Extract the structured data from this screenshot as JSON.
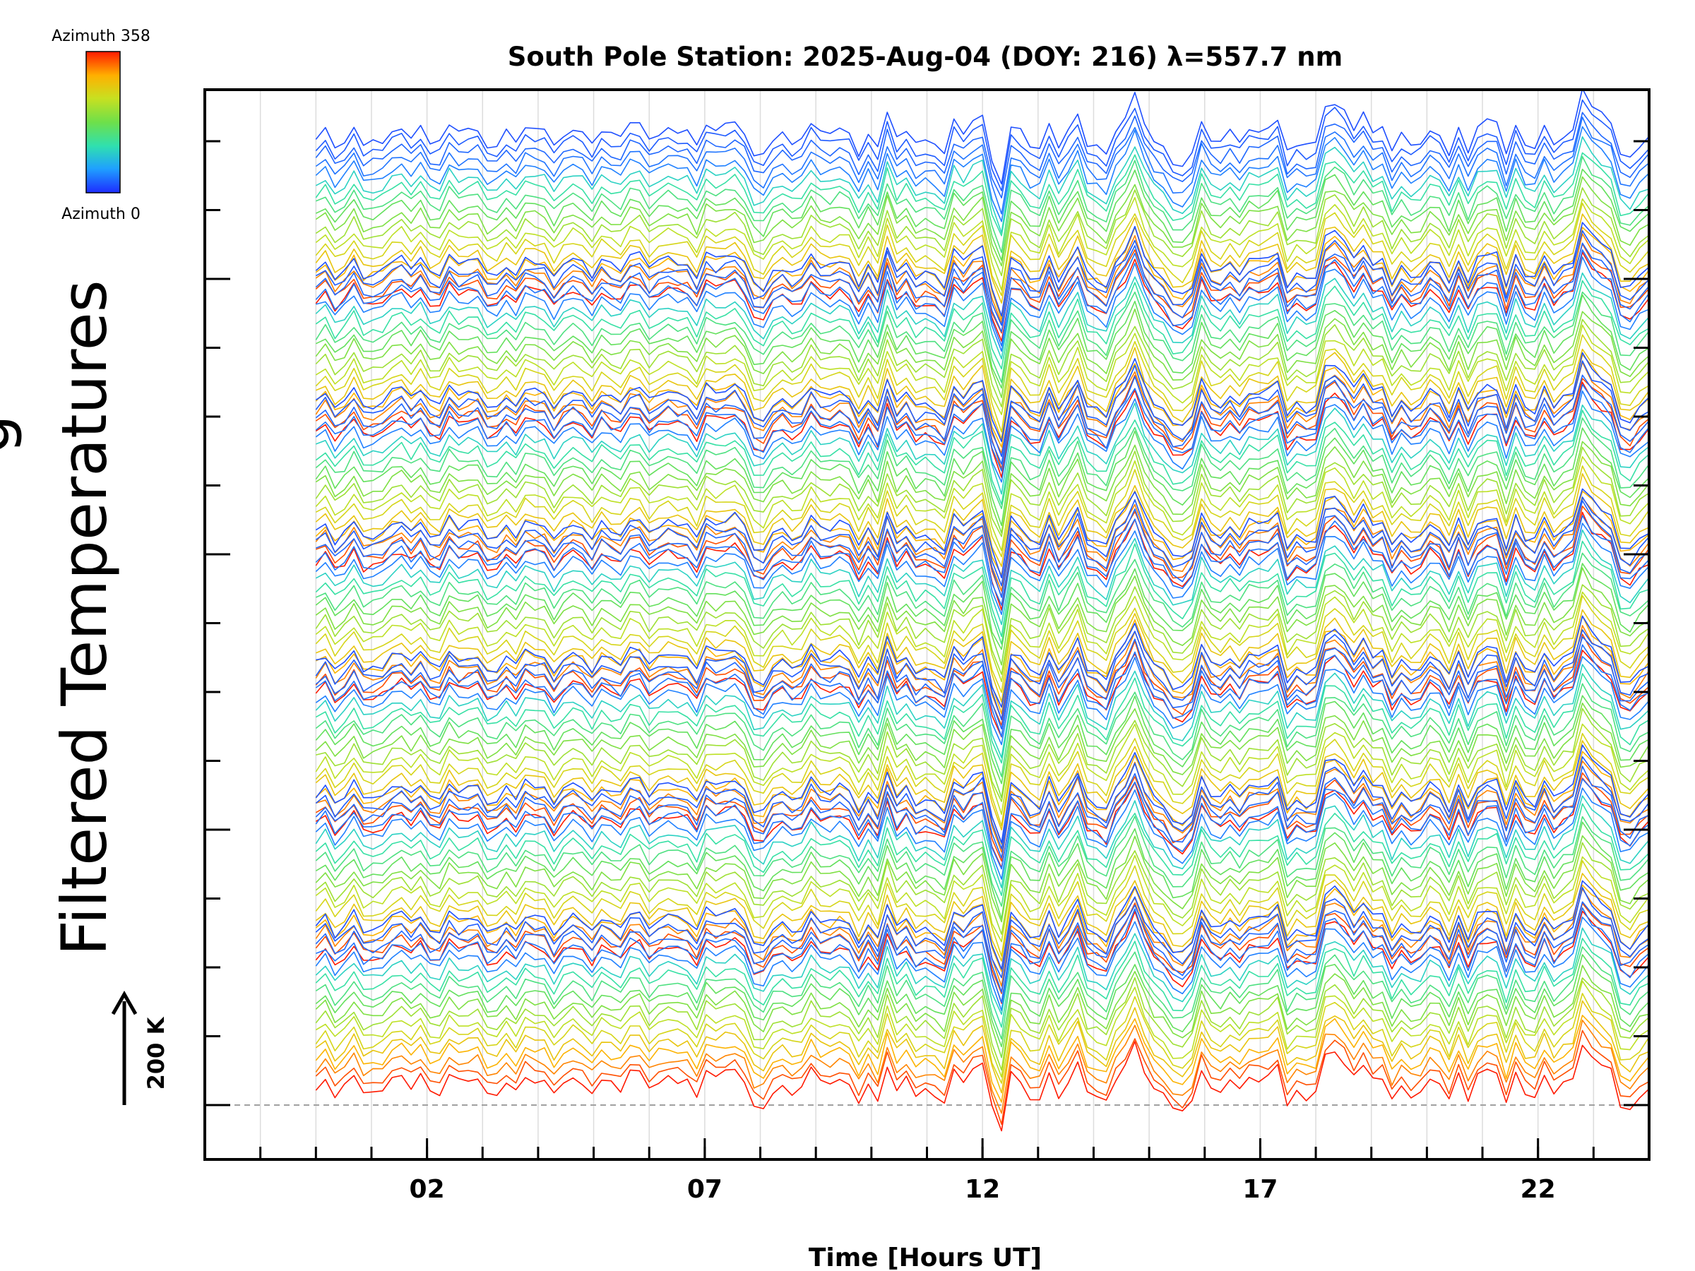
{
  "chart_data": {
    "type": "line",
    "title": "South Pole Station: 2025-Aug-04 (DOY: 216) λ=557.7 nm",
    "xlabel": "Time [Hours UT]",
    "ylabel": "Filtered Temperatures",
    "ylabel_partial": "g",
    "x_tick_labels": [
      "02",
      "07",
      "12",
      "17",
      "22"
    ],
    "x_tick_values": [
      2,
      7,
      12,
      17,
      22
    ],
    "xlim": [
      -2.0,
      24.0
    ],
    "data_x_start": 0.0,
    "data_x_end": 24.0,
    "colorbar": {
      "top_label": "Azimuth 358",
      "bottom_label": "Azimuth 0",
      "azimuth_min": 0,
      "azimuth_max": 358,
      "colors": [
        "#1e2cff",
        "#1fa0ff",
        "#2fe0b0",
        "#6ee04a",
        "#c8e020",
        "#ffb000",
        "#ff1a00"
      ]
    },
    "scale_bar_label": "200 K",
    "baseline_style": "dashed gray",
    "stacked_groups": 7,
    "traces_per_group": 18,
    "event_hours": [
      8.0,
      11.9,
      12.3,
      14.6,
      15.5,
      18.3,
      19.4,
      22.8,
      23.6
    ]
  }
}
